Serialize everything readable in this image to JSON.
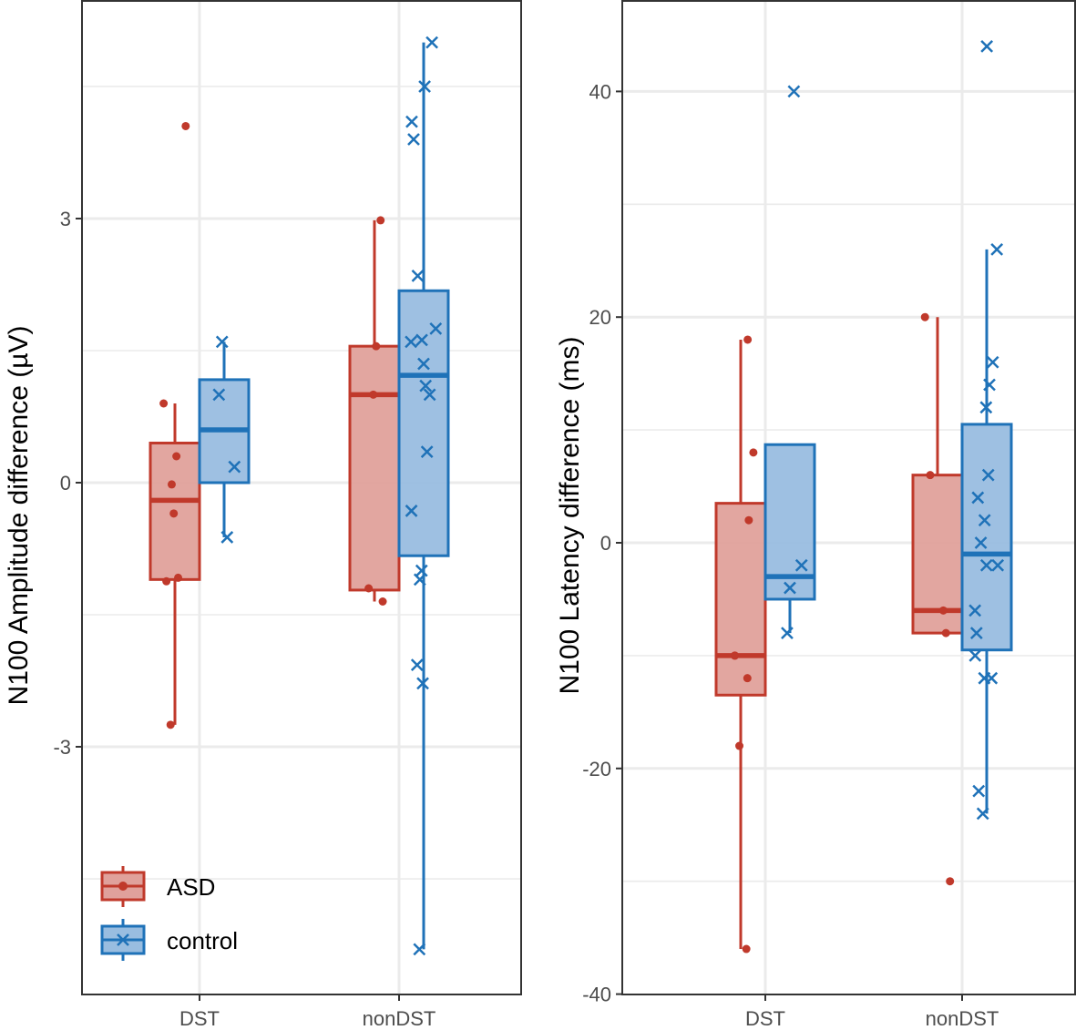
{
  "colors": {
    "ASD": "#C0392B",
    "ASD_fill": "#E0A19B",
    "control": "#1F72B8",
    "control_fill": "#99BDE0",
    "grid": "#EBEBEB",
    "axis": "#333333"
  },
  "legend": {
    "position": "bottom-left",
    "items": [
      {
        "label": "ASD",
        "marker": "dot"
      },
      {
        "label": "control",
        "marker": "x"
      }
    ]
  },
  "chart_data": [
    {
      "type": "box",
      "ylabel": "N100 Amplitude difference (µV)",
      "xlabel": "",
      "categories": [
        "DST",
        "nonDST"
      ],
      "ylim": [
        -5.5,
        5.5
      ],
      "yticks": [
        -3,
        0,
        3
      ],
      "ytick_labels": [
        "-3",
        "0",
        "3"
      ],
      "grid": true,
      "series": [
        {
          "name": "ASD",
          "boxes": [
            {
              "category": "DST",
              "q1": -1.1,
              "median": -0.2,
              "q3": 0.45,
              "whisker_low": -2.75,
              "whisker_high": 0.9,
              "points": [
                4.05,
                0.9,
                0.3,
                -0.02,
                -0.35,
                -1.08,
                -1.12,
                -2.75
              ]
            },
            {
              "category": "nonDST",
              "q1": -1.22,
              "median": 1.0,
              "q3": 1.55,
              "whisker_low": -1.35,
              "whisker_high": 2.98,
              "points": [
                2.98,
                1.55,
                1.0,
                -1.2,
                -1.35
              ]
            }
          ]
        },
        {
          "name": "control",
          "boxes": [
            {
              "category": "DST",
              "q1": 0.0,
              "median": 0.6,
              "q3": 1.17,
              "whisker_low": -0.62,
              "whisker_high": 1.6,
              "points": [
                1.6,
                1.0,
                0.18,
                -0.62
              ]
            },
            {
              "category": "nonDST",
              "q1": -0.83,
              "median": 1.22,
              "q3": 2.18,
              "whisker_low": -5.3,
              "whisker_high": 5.0,
              "points": [
                5.0,
                4.5,
                4.1,
                3.9,
                2.35,
                1.75,
                1.62,
                1.6,
                1.35,
                1.1,
                1.0,
                0.35,
                -0.32,
                -1.0,
                -1.1,
                -2.07,
                -2.28,
                -5.3
              ]
            }
          ]
        }
      ]
    },
    {
      "type": "box",
      "ylabel": "N100 Latency difference (ms)",
      "xlabel": "",
      "categories": [
        "DST",
        "nonDST"
      ],
      "ylim": [
        -40,
        48
      ],
      "yticks": [
        -40,
        -20,
        0,
        20,
        40
      ],
      "ytick_labels": [
        "-40",
        "-20",
        "0",
        "20",
        "40"
      ],
      "grid": true,
      "series": [
        {
          "name": "ASD",
          "boxes": [
            {
              "category": "DST",
              "q1": -13.5,
              "median": -10,
              "q3": 3.5,
              "whisker_low": -36,
              "whisker_high": 18,
              "points": [
                18,
                8,
                2,
                -10,
                -10,
                -12,
                -18,
                -36
              ]
            },
            {
              "category": "nonDST",
              "q1": -8,
              "median": -6,
              "q3": 6,
              "whisker_low": -8,
              "whisker_high": 20,
              "points": [
                20,
                6,
                -6,
                -8,
                -30
              ]
            }
          ]
        },
        {
          "name": "control",
          "boxes": [
            {
              "category": "DST",
              "q1": -5,
              "median": -3,
              "q3": 8.7,
              "whisker_low": -8,
              "whisker_high": 8.7,
              "points": [
                40,
                -2,
                -4,
                -8
              ]
            },
            {
              "category": "nonDST",
              "q1": -9.5,
              "median": -1,
              "q3": 10.5,
              "whisker_low": -24,
              "whisker_high": 26,
              "points": [
                44,
                26,
                16,
                14,
                12,
                6,
                4,
                2,
                0,
                -2,
                -2,
                -6,
                -8,
                -10,
                -12,
                -12,
                -22,
                -24
              ]
            }
          ]
        }
      ]
    }
  ]
}
